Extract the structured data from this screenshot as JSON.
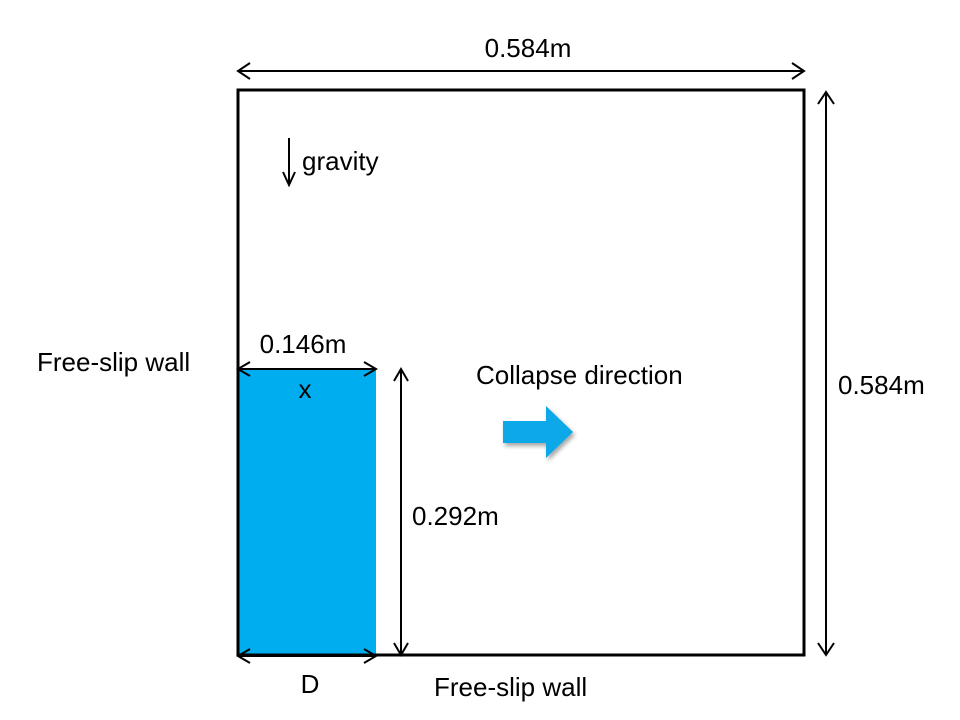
{
  "labels": {
    "top_width": "0.584m",
    "right_height": "0.584m",
    "gravity": "gravity",
    "column_width": "0.146m",
    "column_height": "0.292m",
    "x_marker": "x",
    "d_marker": "D",
    "left_wall": "Free-slip wall",
    "bottom_wall": "Free-slip wall",
    "collapse": "Collapse direction"
  },
  "colors": {
    "water": "#00AEEF",
    "arrow": "#0FA8E8",
    "line": "#000000"
  },
  "icons": {
    "gravity": "arrow-down-icon",
    "collapse": "arrow-right-icon"
  }
}
